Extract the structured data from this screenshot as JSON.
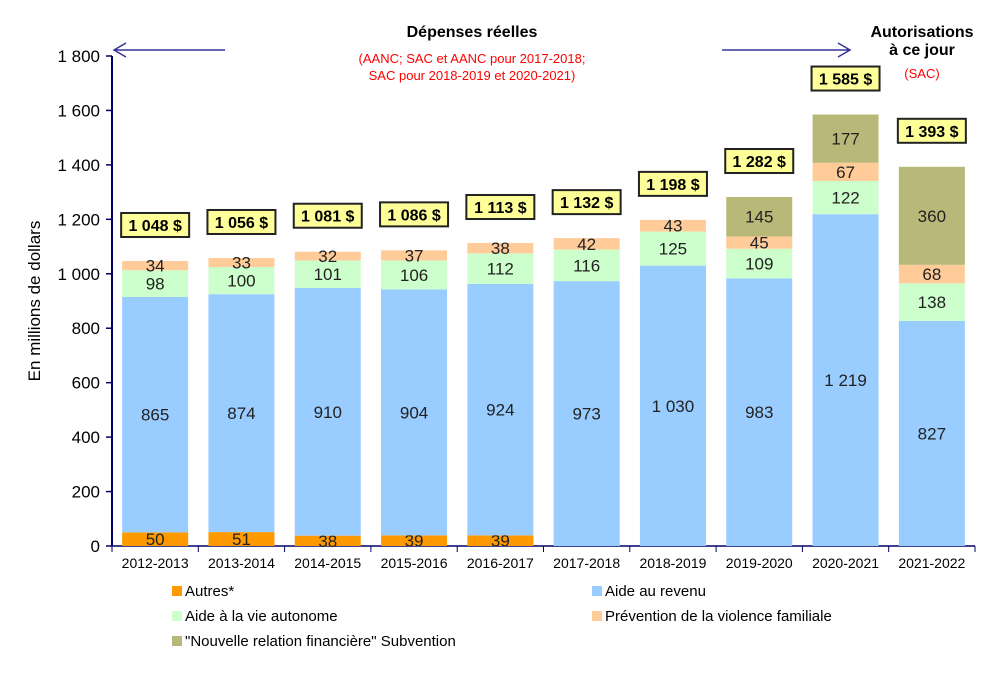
{
  "chart_data": {
    "type": "bar",
    "stacked": true,
    "ylabel": "En millions de dollars",
    "ylim": [
      0,
      1800
    ],
    "yticks": [
      0,
      200,
      400,
      600,
      800,
      1000,
      1200,
      1400,
      1600,
      1800
    ],
    "ytick_labels": [
      "0",
      "200",
      "400",
      "600",
      "800",
      "1 000",
      "1 200",
      "1 400",
      "1 600",
      "1 800"
    ],
    "categories": [
      "2012-2013",
      "2013-2014",
      "2014-2015",
      "2015-2016",
      "2016-2017",
      "2017-2018",
      "2018-2019",
      "2019-2020",
      "2020-2021",
      "2021-2022"
    ],
    "series": [
      {
        "name": "Autres*",
        "color": "#FF9900",
        "values": [
          50,
          51,
          38,
          39,
          39,
          0,
          0,
          0,
          0,
          0
        ],
        "labels": [
          "50",
          "51",
          "38",
          "39",
          "39",
          "",
          "",
          "",
          "",
          ""
        ]
      },
      {
        "name": "Aide au revenu",
        "color": "#99CCFF",
        "values": [
          865,
          874,
          910,
          904,
          924,
          973,
          1030,
          983,
          1219,
          827
        ],
        "labels": [
          "865",
          "874",
          "910",
          "904",
          "924",
          "973",
          "1 030",
          "983",
          "1 219",
          "827"
        ]
      },
      {
        "name": "Aide à la vie autonome",
        "color": "#CCFFCC",
        "values": [
          98,
          100,
          101,
          106,
          112,
          116,
          125,
          109,
          122,
          138
        ],
        "labels": [
          "98",
          "100",
          "101",
          "106",
          "112",
          "116",
          "125",
          "109",
          "122",
          "138"
        ]
      },
      {
        "name": "Prévention de la violence familiale",
        "color": "#FFCC99",
        "values": [
          34,
          33,
          32,
          37,
          38,
          42,
          43,
          45,
          67,
          68
        ],
        "labels": [
          "34",
          "33",
          "32",
          "37",
          "38",
          "42",
          "43",
          "45",
          "67",
          "68"
        ]
      },
      {
        "name": "\"Nouvelle relation financière\" Subvention",
        "color": "#B8B878",
        "values": [
          0,
          0,
          0,
          0,
          0,
          0,
          0,
          145,
          177,
          360
        ],
        "labels": [
          "",
          "",
          "",
          "",
          "",
          "",
          "",
          "145",
          "177",
          "360"
        ]
      }
    ],
    "totals": [
      "1 048 $",
      "1 056 $",
      "1 081 $",
      "1 086 $",
      "1 113 $",
      "1 132 $",
      "1 198 $",
      "1 282 $",
      "1 585 $",
      "1 393 $"
    ],
    "total_box_color": "#FFFF99",
    "annotations": {
      "actual_title": "Dépenses réelles",
      "actual_sub1": "(AANC; SAC et AANC pour 2017-2018;",
      "actual_sub2": "SAC pour 2018-2019 et 2020-2021)",
      "auth_title1": "Autorisations",
      "auth_title2": "à ce jour",
      "auth_sub": "(SAC)",
      "sub_color": "#FF0000",
      "arrow_color": "#333399"
    },
    "legend_placement": "bottom",
    "grid": false
  }
}
